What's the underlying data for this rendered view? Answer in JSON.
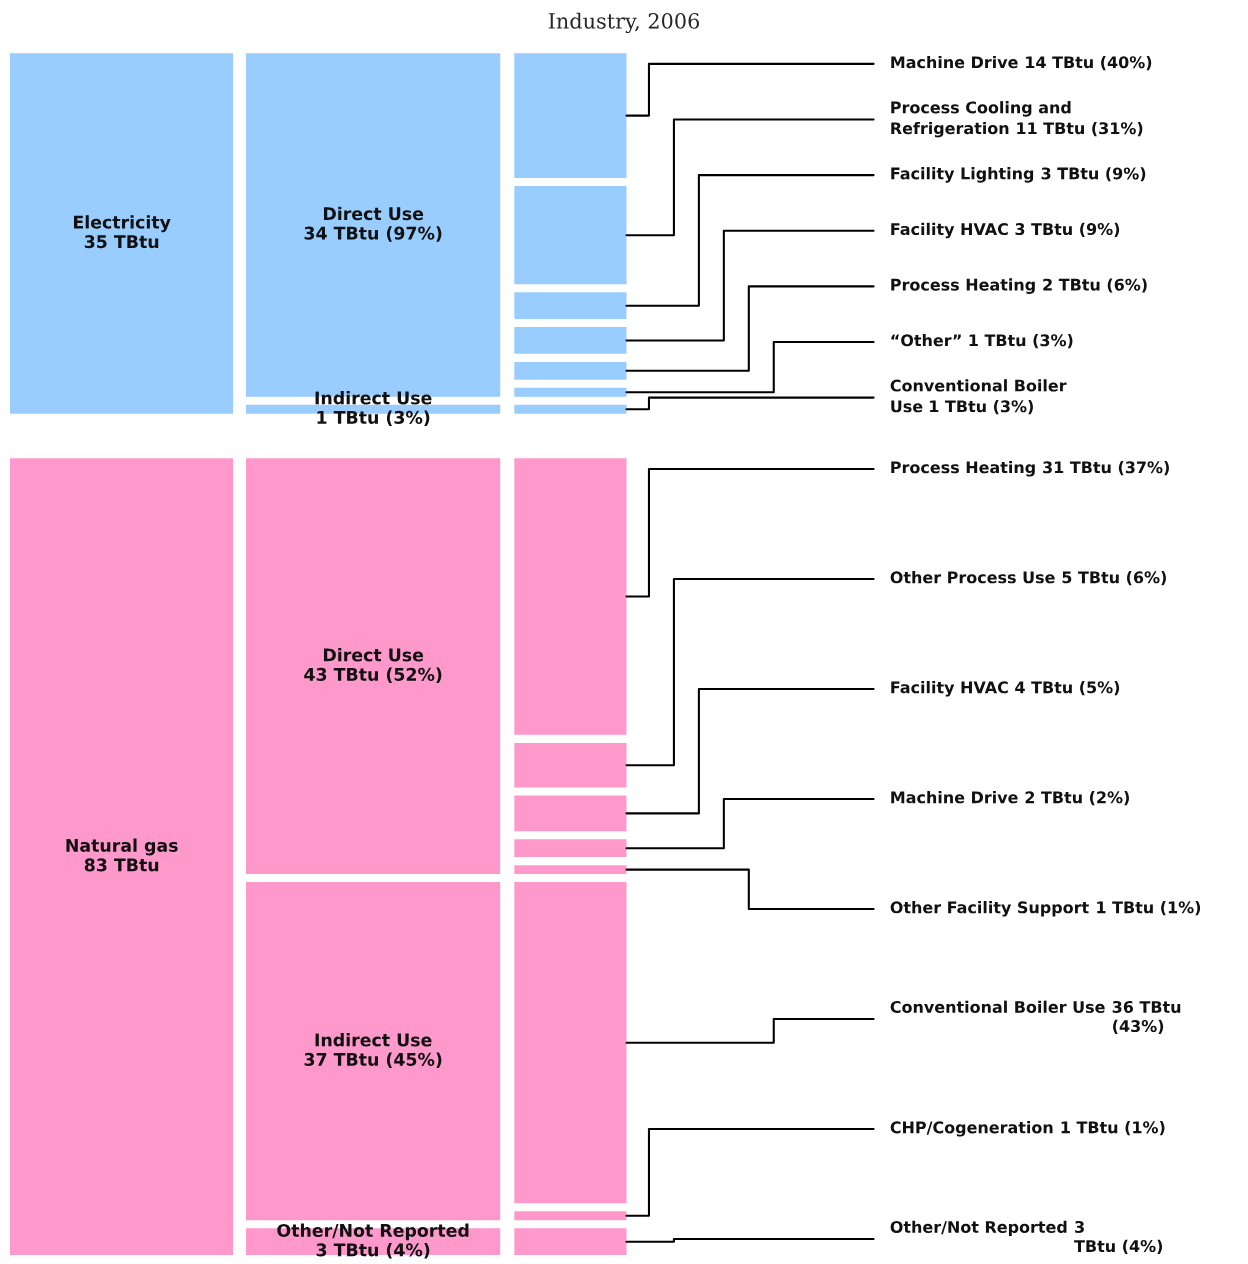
{
  "chart_data": [
    {
      "type": "other",
      "title": "Industry, 2006",
      "categories": [
        "Electricity",
        "Natural gas"
      ],
      "values": [
        35,
        83
      ],
      "colors": [
        "#99ccff",
        "#ff99cc"
      ],
      "value_labels": [
        "35 TBtu",
        "83 TBtu"
      ]
    },
    {
      "type": "other",
      "categories": [
        "Direct Use",
        "Indirect Use",
        "Direct Use",
        "Indirect Use",
        "Other/Not Reported"
      ],
      "values": [
        34,
        1,
        43,
        37,
        3
      ],
      "colors": [
        "#99ccff",
        "#99ccff",
        "#ff99cc",
        "#ff99cc",
        "#ff99cc"
      ],
      "value_labels": [
        "34 TBtu (97%)",
        "1 TBtu (3%)",
        "43 TBtu (52%)",
        "37 TBtu (45%)",
        "3 TBtu (4%)"
      ]
    },
    {
      "type": "other",
      "categories": [
        "Machine Drive",
        "Process Cooling and\nRefrigeration",
        "Facility Lighting",
        "Facility HVAC",
        "Process Heating",
        "“Other”",
        "Conventional Boiler\nUse",
        "Process Heating",
        "Other Process Use",
        "Facility HVAC",
        "Machine Drive",
        "Other Facility Support",
        "Conventional Boiler Use",
        "CHP/Cogeneration",
        "Other/Not Reported"
      ],
      "values": [
        14,
        11,
        3,
        3,
        2,
        1,
        1,
        31,
        5,
        4,
        2,
        1,
        36,
        1,
        3
      ],
      "colors": [
        "#99ccff",
        "#99ccff",
        "#99ccff",
        "#99ccff",
        "#99ccff",
        "#99ccff",
        "#99ccff",
        "#ff99cc",
        "#ff99cc",
        "#ff99cc",
        "#ff99cc",
        "#ff99cc",
        "#ff99cc",
        "#ff99cc",
        "#ff99cc"
      ],
      "value_labels": [
        "14 TBtu (40%)",
        "11 TBtu (31%)",
        "3 TBtu (9%)",
        "3 TBtu (9%)",
        "2 TBtu (6%)",
        "1 TBtu (3%)",
        "1 TBtu (3%)",
        "31 TBtu (37%)",
        "5 TBtu (6%)",
        "4 TBtu (5%)",
        "2 TBtu (2%)",
        "1 TBtu (1%)",
        "36 TBtu\n(43%)",
        "1 TBtu (1%)",
        "3\nTBtu (4%)"
      ]
    }
  ]
}
